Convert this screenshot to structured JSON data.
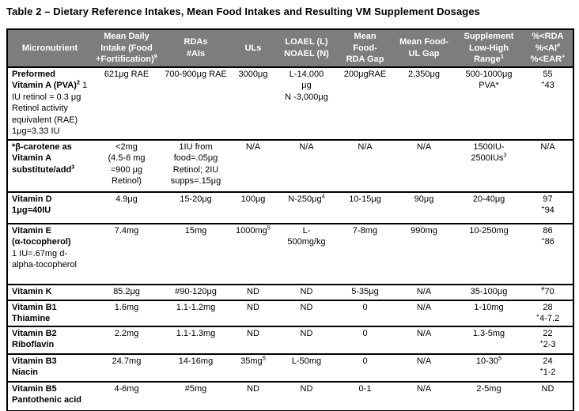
{
  "title": "Table 2 – Dietary Reference Intakes, Mean Food Intakes and Resulting VM Supplement Dosages",
  "colors": {
    "header_bg": "#7d7d7d",
    "header_text": "#ffffff",
    "border": "#000000"
  },
  "table": {
    "columns": [
      "Micronutrient",
      "Mean Daily\nIntake (Food\n+Fortification)^{9}",
      "RDAs\n#AIs",
      "ULs",
      "LOAEL (L)\nNOAEL (N)",
      "Mean\nFood-\nRDA Gap",
      "Mean Food-\nUL Gap",
      "Supplement\nLow-High\nRange^{1}",
      "%<RDA\n%<AI^{#}\n%<EAR^{+}"
    ],
    "rows": [
      {
        "name_bold": "Preformed\nVitamin A (PVA)^{2}",
        "name_rest": " 1 IU retinol = 0.3 μg Retinol activity equivalent (RAE) 1μg=3.33 IU",
        "cells": [
          "621μg RAE",
          "700-900μg RAE",
          "3000μg",
          "L-14,000\nμg\nN -3,000μg",
          "200μgRAE",
          "2,350μg",
          "500-1000μg\nPVA*",
          "55\n^{+}43"
        ]
      },
      {
        "name_bold": "*β-carotene as\nVitamin A\nsubstitute/add^{3}",
        "name_rest": "",
        "cells": [
          "<2mg\n(4.5-6 mg\n=900 μg\nRetinol)",
          "1IU from\nfood=.05μg\nRetinol; 2IU\nsupps=.15μg",
          "N/A",
          "N/A",
          "N/A",
          "N/A",
          "1500IU-\n2500IUs^{3}",
          "N/A"
        ]
      },
      {
        "name_bold": "Vitamin D\n1μg=40IU",
        "name_rest": "",
        "cells": [
          "4.9μg",
          "15-20μg",
          "100μg",
          "N-250μg^{4}",
          "10-15μg",
          "90μg",
          "20-40μg",
          "97\n^{+}94"
        ]
      },
      {
        "name_bold": "Vitamin E\n(α-tocopherol)",
        "name_rest": "\n1 IU=.67mg d-alpha-tocopherol",
        "cells": [
          "7.4mg",
          "15mg",
          "1000mg^{5}",
          "L-\n500mg/kg",
          "7-8mg",
          "990mg",
          "10-250mg",
          "86\n^{+}86"
        ]
      },
      {
        "name_bold": "Vitamin K",
        "name_rest": "",
        "cells": [
          "85.2μg",
          "#90-120μg",
          "ND",
          "ND",
          "5-35μg",
          "N/A",
          "35-100μg",
          "^{#}70"
        ]
      },
      {
        "name_bold": "Vitamin B1\nThiamine",
        "name_rest": "",
        "cells": [
          "1.6mg",
          "1.1-1.2mg",
          "ND",
          "ND",
          "0",
          "N/A",
          "1-10mg",
          "28\n^{+}4-7.2"
        ]
      },
      {
        "name_bold": "Vitamin B2\nRiboflavin",
        "name_rest": "",
        "cells": [
          "2.2mg",
          "1.1-1.3mg",
          "ND",
          "ND",
          "0",
          "N/A",
          "1.3-5mg",
          "22\n^{+}2-3"
        ]
      },
      {
        "name_bold": "Vitamin B3\nNiacin",
        "name_rest": "",
        "cells": [
          "24.7mg",
          "14-16mg",
          "35mg^{5}",
          "L-50mg",
          "0",
          "N/A",
          "10-30^{5}",
          "24\n^{+}1-2"
        ]
      },
      {
        "name_bold": "Vitamin B5\nPantothenic acid",
        "name_rest": "",
        "cells": [
          "4-6mg",
          "#5mg",
          "ND",
          "ND",
          "0-1",
          "N/A",
          "2-5mg",
          "ND"
        ]
      }
    ]
  }
}
